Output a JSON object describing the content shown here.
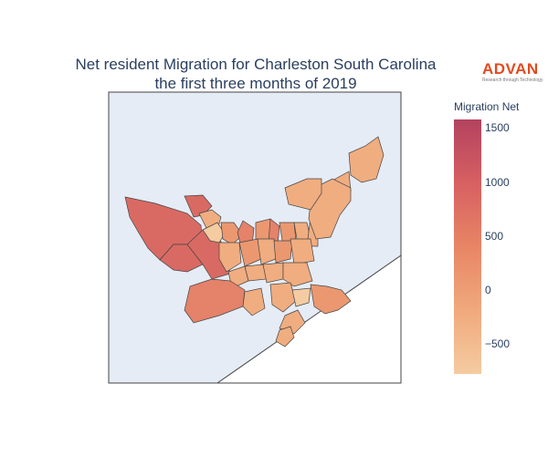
{
  "title": {
    "line1": "Net resident Migration for Charleston South Carolina",
    "line2": "the first three months of 2019"
  },
  "logo": {
    "word": "ADVAN",
    "tagline": "Research through Technology"
  },
  "colorbar": {
    "title": "Migration Net",
    "min": -780,
    "max": 1580,
    "ticks": [
      {
        "value": 1500,
        "label": "1500"
      },
      {
        "value": 1000,
        "label": "1000"
      },
      {
        "value": 500,
        "label": "500"
      },
      {
        "value": 0,
        "label": "0"
      },
      {
        "value": -500,
        "label": "−500"
      }
    ],
    "colors": [
      "#f5cba1",
      "#f0a97c",
      "#e88565",
      "#d76062",
      "#b3425f"
    ]
  },
  "map": {
    "land_color": "#e5ecf6",
    "water_color": "#ffffff",
    "border_color": "#444444"
  }
}
